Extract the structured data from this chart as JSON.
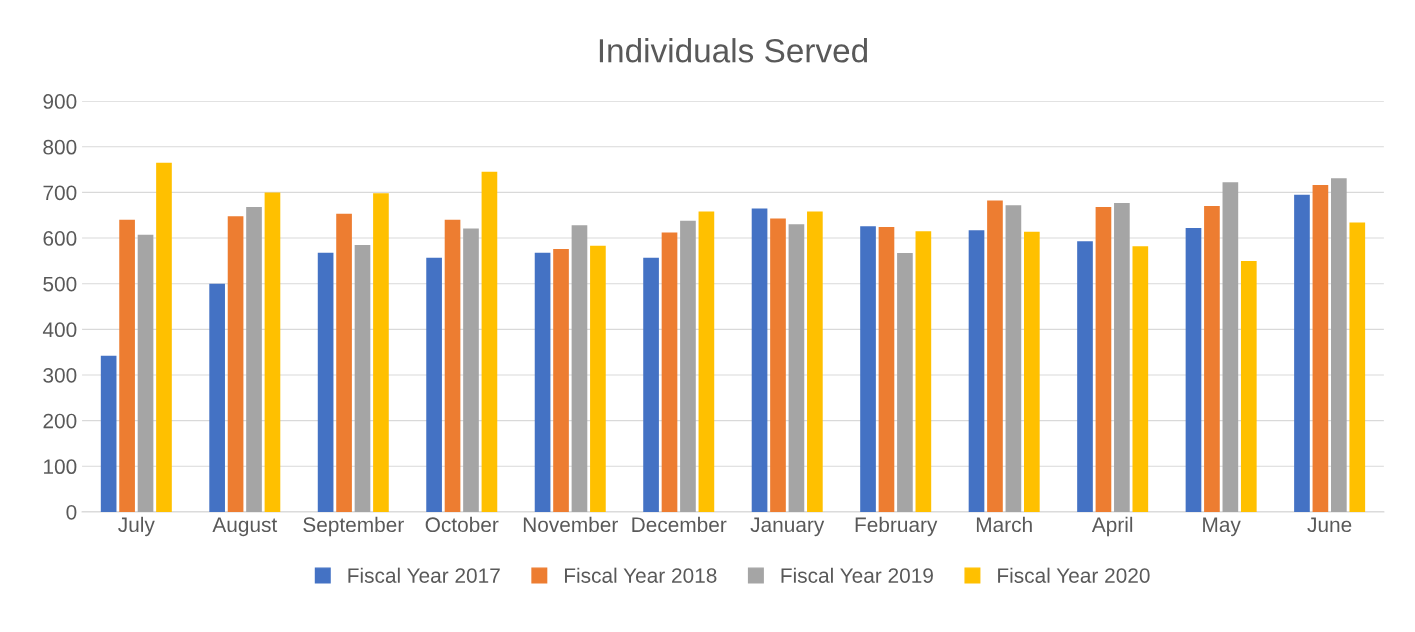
{
  "chart_data": {
    "type": "bar",
    "title": "Individuals Served",
    "categories": [
      "July",
      "August",
      "September",
      "October",
      "November",
      "December",
      "January",
      "February",
      "March",
      "April",
      "May",
      "June"
    ],
    "series": [
      {
        "name": "Fiscal Year 2017",
        "color": "#4472c4",
        "values": [
          342,
          500,
          568,
          557,
          568,
          557,
          665,
          626,
          617,
          593,
          622,
          695
        ]
      },
      {
        "name": "Fiscal Year 2018",
        "color": "#ed7d31",
        "values": [
          640,
          648,
          653,
          640,
          576,
          612,
          643,
          624,
          682,
          668,
          670,
          716
        ]
      },
      {
        "name": "Fiscal Year 2019",
        "color": "#a5a5a5",
        "values": [
          607,
          668,
          585,
          621,
          628,
          638,
          630,
          567,
          672,
          677,
          722,
          731
        ]
      },
      {
        "name": "Fiscal Year 2020",
        "color": "#ffc000",
        "values": [
          765,
          700,
          698,
          745,
          583,
          658,
          658,
          615,
          614,
          582,
          550,
          634
        ]
      }
    ],
    "ylim": [
      0,
      900
    ],
    "yticks": [
      0,
      100,
      200,
      300,
      400,
      500,
      600,
      700,
      800,
      900
    ],
    "grid": "y",
    "legend": "bottom"
  }
}
